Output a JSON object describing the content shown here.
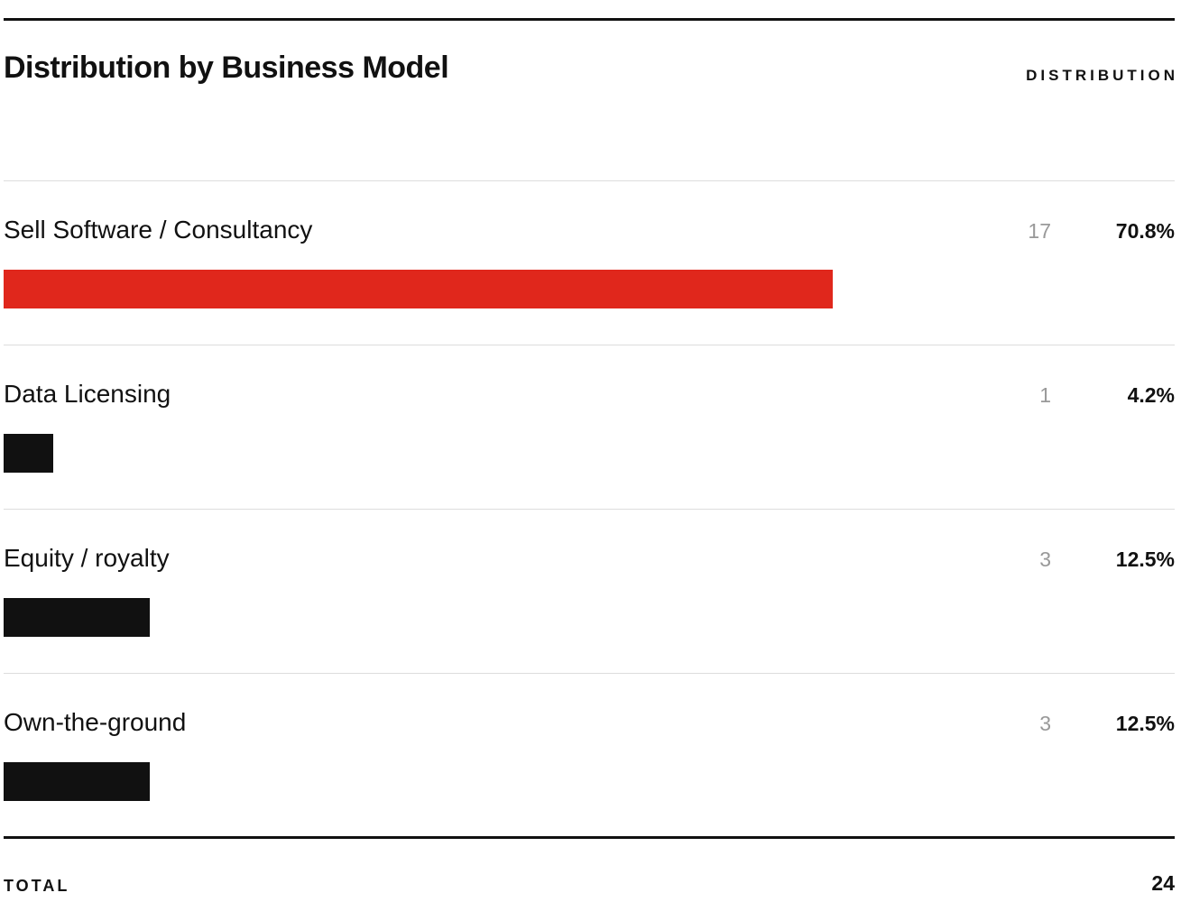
{
  "chart_data": {
    "type": "bar",
    "title": "Distribution by Business Model",
    "header_label": "DISTRIBUTION",
    "categories": [
      "Sell Software / Consultancy",
      "Data Licensing",
      "Equity / royalty",
      "Own-the-ground"
    ],
    "counts": [
      17,
      1,
      3,
      3
    ],
    "values": [
      70.8,
      4.2,
      12.5,
      12.5
    ],
    "value_labels": [
      "70.8%",
      "4.2%",
      "12.5%",
      "12.5%"
    ],
    "colors": [
      "#e0271c",
      "#111111",
      "#111111",
      "#111111"
    ],
    "xlim": [
      0,
      100
    ],
    "total_label": "TOTAL",
    "total": 24
  }
}
